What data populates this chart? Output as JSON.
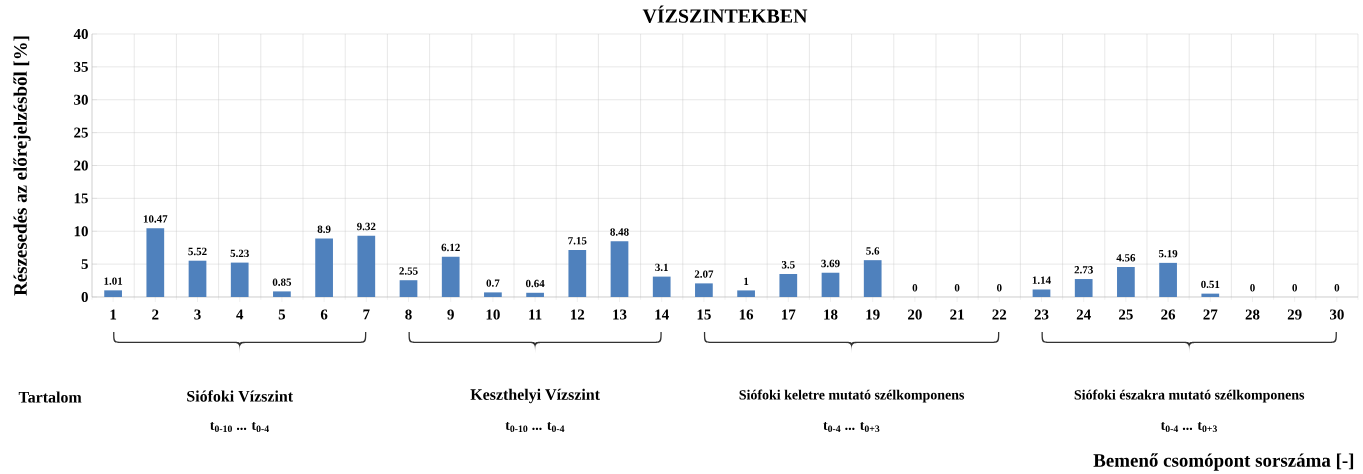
{
  "chart_data": {
    "type": "bar",
    "title": "VÍZSZINTEKBEN",
    "ylabel": "Részesedés az előrejelzésből [%]",
    "categories": [
      "1",
      "2",
      "3",
      "4",
      "5",
      "6",
      "7",
      "8",
      "9",
      "10",
      "11",
      "12",
      "13",
      "14",
      "15",
      "16",
      "17",
      "18",
      "19",
      "20",
      "21",
      "22",
      "23",
      "24",
      "25",
      "26",
      "27",
      "28",
      "29",
      "30"
    ],
    "values": [
      1.01,
      10.47,
      5.52,
      5.23,
      0.85,
      8.9,
      9.32,
      2.55,
      6.12,
      0.7,
      0.64,
      7.15,
      8.48,
      3.1,
      2.07,
      1,
      3.5,
      3.69,
      5.6,
      0,
      0,
      0,
      1.14,
      2.73,
      4.56,
      5.19,
      0.51,
      0,
      0,
      0
    ],
    "color": "#4f81bd",
    "data_labels": true,
    "grid": true,
    "ylim": [
      0,
      40
    ],
    "yticks": [
      0,
      5,
      10,
      15,
      20,
      25,
      30,
      35,
      40
    ],
    "annotations": [
      "Tartalom",
      "Siófoki Vízszint",
      "t$_{0-10}$ ... t$_{0-4}$",
      "Keszthelyi Vízszint",
      "t$_{0-10}$ ... t$_{0-4}$",
      "Siófoki keletre mutató szélkomponens",
      "t$_{0-4}$ ... t$_{0+3}$",
      "Siófoki északra mutató szélkomponens",
      "t$_{0-4}$ ... t$_{0+3}$",
      "Bemenő csomópont sorszáma [-]"
    ]
  }
}
